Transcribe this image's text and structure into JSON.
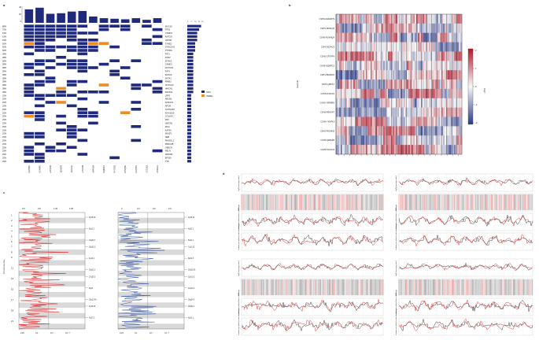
{
  "panels": {
    "a": {
      "label": "a"
    },
    "b": {
      "label": "b"
    },
    "c": {
      "label": "c"
    },
    "d": {
      "label": "d"
    }
  },
  "oncoprint": {
    "legend": [
      {
        "label": "SNV",
        "color": "#1f2a7c"
      },
      {
        "label": "INDEL",
        "color": "#f08a24"
      }
    ],
    "top_axis": [
      "40",
      "20",
      "0"
    ],
    "genes": [
      "MUC16",
      "TP53",
      "CSMD3",
      "KMT2D",
      "LRP1B",
      "SYNE1",
      "DYNC2H1",
      "PTPRD",
      "FAT1",
      "RYR2",
      "ZFHX3",
      "CSMD1",
      "NOTCH1",
      "FAT4",
      "KMT2C",
      "SPTA1",
      "RIMS2",
      "NOTCH3",
      "HMCN1",
      "ZNF462",
      "LRP2",
      "ABCB1",
      "AHNAK2",
      "APOB",
      "CNTNAP2",
      "KIAA1109",
      "COL6A3",
      "DST",
      "HMCN2",
      "MGA",
      "KAT6A",
      "MACF1",
      "NEB",
      "PKHD1L1",
      "PRRC2B",
      "OBSCN",
      "RELN",
      "ARID1B",
      "EP300",
      "TTN"
    ],
    "freqs": [
      "88%",
      "75%",
      "63%",
      "63%",
      "63%",
      "50%",
      "50%",
      "50%",
      "38%",
      "38%",
      "38%",
      "38%",
      "38%",
      "38%",
      "38%",
      "38%",
      "38%",
      "38%",
      "38%",
      "38%",
      "25%",
      "25%",
      "25%",
      "25%",
      "25%",
      "25%",
      "25%",
      "25%",
      "25%",
      "25%",
      "25%",
      "25%",
      "25%",
      "25%",
      "25%",
      "25%",
      "25%",
      "25%",
      "25%",
      "25%"
    ],
    "samples": [
      "CSHS-CEPW61",
      "CSHS-KC4W91",
      "CSHS-EYD9J2",
      "CSHS-QD0B79",
      "CSHS-GRAL61",
      "CSHS-LPRK09",
      "CSHS-B44M04",
      "CSHS-NQ80ND",
      "CSHS-RFC0O3",
      "CSHS-OPVQ52",
      "CSHS-CEYB4N",
      "CSHS-1COL8D",
      "CSHS-4ORE1A"
    ],
    "totals_axis": [
      "0",
      "5",
      "10",
      "15",
      "20"
    ]
  },
  "heatmap": {
    "ylabel": "Sample",
    "colorbar_label": "log2",
    "colorbar_ticks": [
      "2",
      "1",
      "0",
      "-1",
      "-2"
    ],
    "samples": [
      "CSHS-CEFAW79",
      "CSHS-NFMLQ6",
      "CSHS-RGHHQA",
      "CSHS-8LFAO3",
      "CSHS-CRTVFH",
      "CSHS-NQMPCS",
      "CSHS-BK4RMX",
      "CSHS-QBVS7",
      "CSHS-DV6UV0",
      "CSHS-YMRPBN",
      "CSHS-PEHSRT",
      "CSHS-YNVPK3",
      "CSHS-FAOHNZ",
      "CSHS-QEB1R5",
      "CSHS-NCK4U4"
    ]
  },
  "gistic": {
    "amp_top_ticks": [
      "0.5",
      "0.8",
      "1.35",
      "1.66"
    ],
    "del_top_ticks": [
      "0",
      "0.3",
      "0.6",
      "0.9"
    ],
    "ylabel": "Chromosome",
    "chromosomes": [
      "1",
      "2",
      "3",
      "4",
      "5",
      "6",
      "7",
      "8",
      "9",
      "10",
      "11",
      "12",
      "13",
      "14",
      "15",
      "16",
      "17",
      "18",
      "19",
      "20",
      "21",
      "22"
    ],
    "amp_peaks": [
      "5p15.33",
      "8q11.2",
      "13q22.1",
      "16q22.3",
      "4q12.1",
      "15q11.2",
      "17q25.3",
      "5q21",
      "19q13.43",
      "1p36.33",
      "Xq27.3"
    ],
    "del_peaks": [
      "1p36.31",
      "4q22.1",
      "5q21.1",
      "7q11.23",
      "9p21.3",
      "10q23.31",
      "12p13.2",
      "13q14.2",
      "16q24.2",
      "18q21.1",
      "Xp21.1"
    ],
    "amp_bottom_ticks": [
      "0.25",
      "0.1",
      "10⁻⁵",
      "10⁻¹⁰"
    ],
    "del_bottom_ticks": [
      "0.25",
      "0.1",
      "10⁻⁵",
      "10⁻¹⁰"
    ]
  },
  "coverage_plots": {
    "track_labels": [
      "log2(coverage ratio)",
      "BAF",
      "median smoothed tumor coverage",
      "median smoothed control coverage"
    ],
    "upper_label": "chromosome position",
    "lower_label": "chromosome position"
  }
}
